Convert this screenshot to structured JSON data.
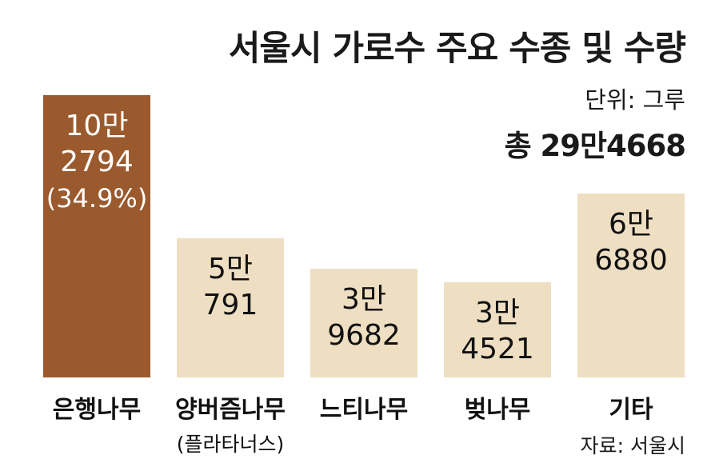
{
  "title": "서울시 가로수 주요 수종 및 수량",
  "unit_label": "단위: 그루",
  "total_label": "총 29만4668",
  "source_label": "자료: 서울시",
  "colors": {
    "highlight": "#9a5a2e",
    "default": "#eedfc2",
    "label_on_highlight": "#ffffff",
    "label_on_default": "#111111"
  },
  "chart_data": {
    "type": "bar",
    "title": "서울시 가로수 주요 수종 및 수량",
    "xlabel": "",
    "ylabel": "",
    "unit": "그루",
    "total": 294668,
    "categories": [
      "은행나무",
      "양버즘나무",
      "느티나무",
      "벚나무",
      "기타"
    ],
    "category_sublabels": [
      "",
      "(플라타너스)",
      "",
      "",
      ""
    ],
    "values": [
      102794,
      50791,
      39682,
      34521,
      66880
    ],
    "value_labels": [
      [
        "10만",
        "2794",
        "(34.9%)"
      ],
      [
        "5만",
        "791"
      ],
      [
        "3만",
        "9682"
      ],
      [
        "3만",
        "4521"
      ],
      [
        "6만",
        "6880"
      ]
    ],
    "highlight_index": 0,
    "ylim": [
      0,
      102794
    ],
    "grid": false,
    "legend": "none"
  }
}
